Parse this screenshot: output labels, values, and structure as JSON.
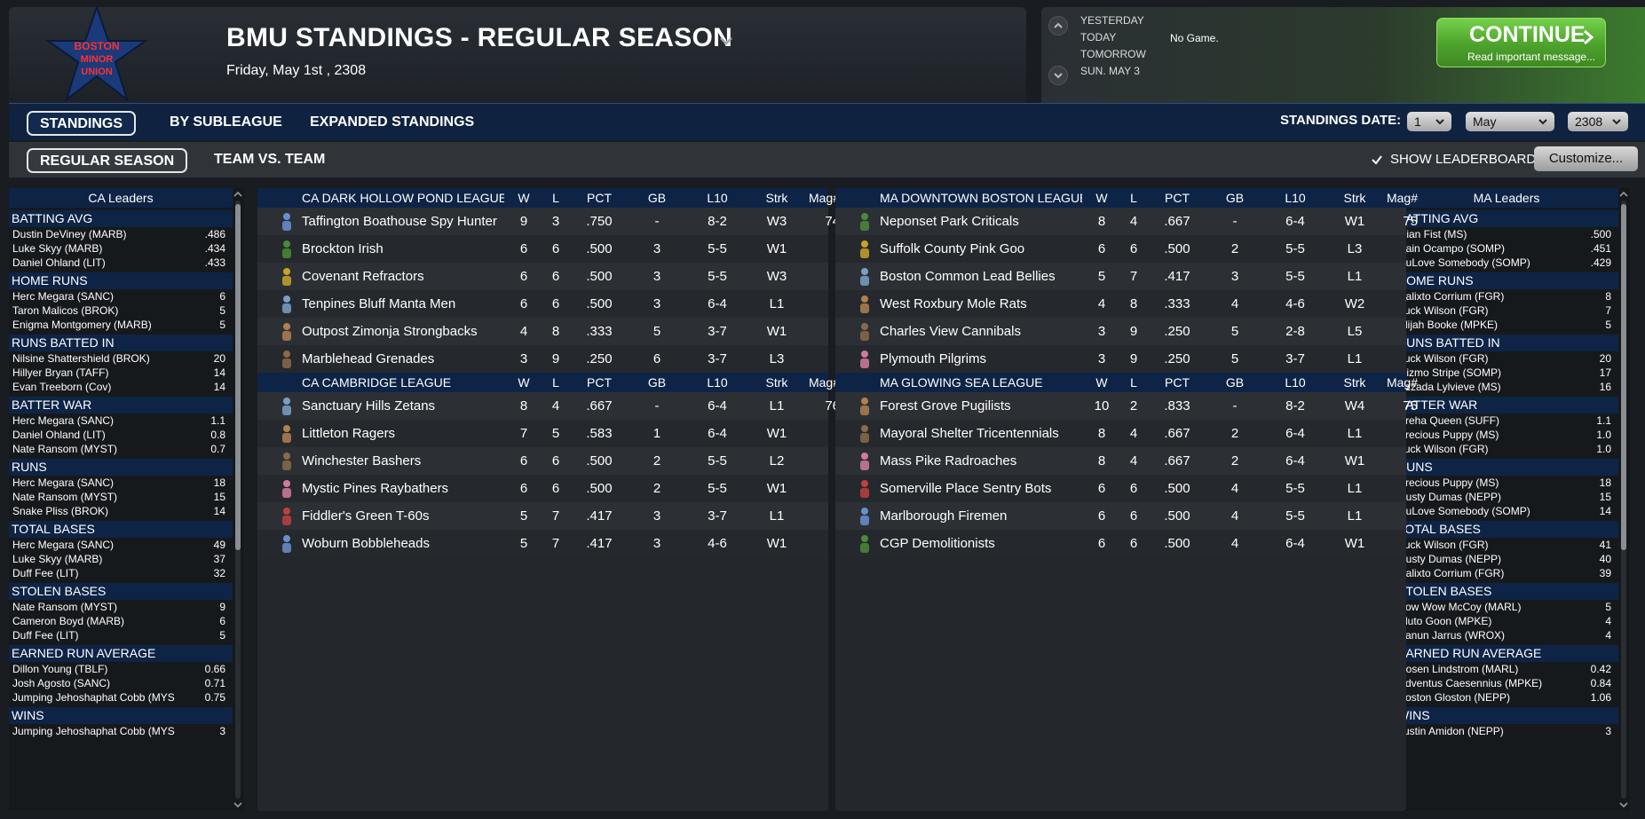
{
  "header": {
    "logo_text": [
      "BOSTON",
      "MINOR",
      "UNION"
    ],
    "title": "BMU STANDINGS - REGULAR SEASON",
    "date": "Friday, May 1st , 2308"
  },
  "schedule": {
    "labels": [
      "YESTERDAY",
      "TODAY",
      "TOMORROW",
      "SUN. MAY 3"
    ],
    "today_game": "No Game."
  },
  "continue": {
    "label": "CONTINUE",
    "sub": "Read important message..."
  },
  "tabs": {
    "top": [
      "STANDINGS",
      "BY SUBLEAGUE",
      "EXPANDED STANDINGS"
    ],
    "sub": [
      "REGULAR SEASON",
      "TEAM VS. TEAM"
    ]
  },
  "standings_date": {
    "label": "STANDINGS DATE:",
    "day": "1",
    "month": "May",
    "year": "2308"
  },
  "show_leaderboards": "SHOW LEADERBOARDS",
  "customize": "Customize...",
  "columns": {
    "w": "W",
    "l": "L",
    "pct": "PCT",
    "gb": "GB",
    "l10": "L10",
    "strk": "Strk",
    "mag": "Mag#"
  },
  "leaders": [
    {
      "title": "CA Leaders",
      "categories": [
        {
          "name": "BATTING AVG",
          "rows": [
            [
              "Dustin DeViney (MARB)",
              ".486"
            ],
            [
              "Luke Skyy (MARB)",
              ".434"
            ],
            [
              "Daniel Ohland (LIT)",
              ".433"
            ]
          ]
        },
        {
          "name": "HOME RUNS",
          "rows": [
            [
              "Herc Megara (SANC)",
              "6"
            ],
            [
              "Taron Malicos (BROK)",
              "5"
            ],
            [
              "Enigma Montgomery (MARB)",
              "5"
            ]
          ]
        },
        {
          "name": "RUNS BATTED IN",
          "rows": [
            [
              "Nilsine Shattershield (BROK)",
              "20"
            ],
            [
              "Hillyer Bryan (TAFF)",
              "14"
            ],
            [
              "Evan Treeborn (Cov)",
              "14"
            ]
          ]
        },
        {
          "name": "BATTER WAR",
          "rows": [
            [
              "Herc Megara (SANC)",
              "1.1"
            ],
            [
              "Daniel Ohland (LIT)",
              "0.8"
            ],
            [
              "Nate Ransom (MYST)",
              "0.7"
            ]
          ]
        },
        {
          "name": "RUNS",
          "rows": [
            [
              "Herc Megara (SANC)",
              "18"
            ],
            [
              "Nate Ransom (MYST)",
              "15"
            ],
            [
              "Snake Pliss (BROK)",
              "14"
            ]
          ]
        },
        {
          "name": "TOTAL BASES",
          "rows": [
            [
              "Herc Megara (SANC)",
              "49"
            ],
            [
              "Luke Skyy (MARB)",
              "37"
            ],
            [
              "Duff Fee (LIT)",
              "32"
            ]
          ]
        },
        {
          "name": "STOLEN BASES",
          "rows": [
            [
              "Nate Ransom (MYST)",
              "9"
            ],
            [
              "Cameron Boyd (MARB)",
              "6"
            ],
            [
              "Duff Fee (LIT)",
              "5"
            ]
          ]
        },
        {
          "name": "EARNED RUN AVERAGE",
          "rows": [
            [
              "Dillon Young (TBLF)",
              "0.66"
            ],
            [
              "Josh Agosto (SANC)",
              "0.71"
            ],
            [
              "Jumping Jehoshaphat Cobb (MYS",
              "0.75"
            ]
          ]
        },
        {
          "name": "WINS",
          "rows": [
            [
              "Jumping Jehoshaphat Cobb (MYS",
              "3"
            ]
          ]
        }
      ]
    },
    {
      "title": "MA Leaders",
      "categories": [
        {
          "name": "BATTING AVG",
          "rows": [
            [
              "Gian Fist (MS)",
              ".500"
            ],
            [
              "Rain Ocampo (SOMP)",
              ".451"
            ],
            [
              "DuLove Somebody (SOMP)",
              ".429"
            ]
          ]
        },
        {
          "name": "HOME RUNS",
          "rows": [
            [
              "Calixto Corrium (FGR)",
              "8"
            ],
            [
              "Tuck Wilson (FGR)",
              "7"
            ],
            [
              "Elijah Booke (MPKE)",
              "5"
            ]
          ]
        },
        {
          "name": "RUNS BATTED IN",
          "rows": [
            [
              "Tuck Wilson (FGR)",
              "20"
            ],
            [
              "Gizmo Stripe (SOMP)",
              "17"
            ],
            [
              "Azzada Lylvieve (MS)",
              "16"
            ]
          ]
        },
        {
          "name": "BATTER WAR",
          "rows": [
            [
              "Breha Queen (SUFF)",
              "1.1"
            ],
            [
              "Precious Puppy (MS)",
              "1.0"
            ],
            [
              "Tuck Wilson (FGR)",
              "1.0"
            ]
          ]
        },
        {
          "name": "RUNS",
          "rows": [
            [
              "Precious Puppy (MS)",
              "18"
            ],
            [
              "Dusty Dumas (NEPP)",
              "15"
            ],
            [
              "DuLove Somebody (SOMP)",
              "14"
            ]
          ]
        },
        {
          "name": "TOTAL BASES",
          "rows": [
            [
              "Tuck Wilson (FGR)",
              "41"
            ],
            [
              "Dusty Dumas (NEPP)",
              "40"
            ],
            [
              "Calixto Corrium (FGR)",
              "39"
            ]
          ]
        },
        {
          "name": "STOLEN BASES",
          "rows": [
            [
              "Bow Wow McCoy (MARL)",
              "5"
            ],
            [
              "Bluto Goon (MPKE)",
              "4"
            ],
            [
              "Kanun Jarrus (WROX)",
              "4"
            ]
          ]
        },
        {
          "name": "EARNED RUN AVERAGE",
          "rows": [
            [
              "Cosen Lindstrom (MARL)",
              "0.42"
            ],
            [
              "Adventus Caesennius (MPKE)",
              "0.84"
            ],
            [
              "Boston Gloston (NEPP)",
              "1.06"
            ]
          ]
        },
        {
          "name": "WINS",
          "rows": [
            [
              "Justin Amidon (NEPP)",
              "3"
            ]
          ]
        }
      ]
    }
  ],
  "divisions": [
    [
      {
        "name": "CA DARK HOLLOW POND LEAGUE",
        "teams": [
          {
            "team": "Taffington Boathouse Spy Hunters",
            "w": "9",
            "l": "3",
            "pct": ".750",
            "gb": "-",
            "l10": "8-2",
            "strk": "W3",
            "mag": "74"
          },
          {
            "team": "Brockton Irish",
            "w": "6",
            "l": "6",
            "pct": ".500",
            "gb": "3",
            "l10": "5-5",
            "strk": "W1",
            "mag": ""
          },
          {
            "team": "Covenant Refractors",
            "w": "6",
            "l": "6",
            "pct": ".500",
            "gb": "3",
            "l10": "5-5",
            "strk": "W3",
            "mag": ""
          },
          {
            "team": "Tenpines Bluff Manta Men",
            "w": "6",
            "l": "6",
            "pct": ".500",
            "gb": "3",
            "l10": "6-4",
            "strk": "L1",
            "mag": ""
          },
          {
            "team": "Outpost Zimonja Strongbacks",
            "w": "4",
            "l": "8",
            "pct": ".333",
            "gb": "5",
            "l10": "3-7",
            "strk": "W1",
            "mag": ""
          },
          {
            "team": "Marblehead Grenades",
            "w": "3",
            "l": "9",
            "pct": ".250",
            "gb": "6",
            "l10": "3-7",
            "strk": "L3",
            "mag": ""
          }
        ]
      },
      {
        "name": "CA CAMBRIDGE LEAGUE",
        "teams": [
          {
            "team": "Sanctuary Hills Zetans",
            "w": "8",
            "l": "4",
            "pct": ".667",
            "gb": "-",
            "l10": "6-4",
            "strk": "L1",
            "mag": "76"
          },
          {
            "team": "Littleton Ragers",
            "w": "7",
            "l": "5",
            "pct": ".583",
            "gb": "1",
            "l10": "6-4",
            "strk": "W1",
            "mag": ""
          },
          {
            "team": "Winchester Bashers",
            "w": "6",
            "l": "6",
            "pct": ".500",
            "gb": "2",
            "l10": "5-5",
            "strk": "L2",
            "mag": ""
          },
          {
            "team": "Mystic Pines Raybathers",
            "w": "6",
            "l": "6",
            "pct": ".500",
            "gb": "2",
            "l10": "5-5",
            "strk": "W1",
            "mag": ""
          },
          {
            "team": "Fiddler's Green T-60s",
            "w": "5",
            "l": "7",
            "pct": ".417",
            "gb": "3",
            "l10": "3-7",
            "strk": "L1",
            "mag": ""
          },
          {
            "team": "Woburn Bobbleheads",
            "w": "5",
            "l": "7",
            "pct": ".417",
            "gb": "3",
            "l10": "4-6",
            "strk": "W1",
            "mag": ""
          }
        ]
      }
    ],
    [
      {
        "name": "MA DOWNTOWN BOSTON LEAGUE",
        "teams": [
          {
            "team": "Neponset Park Criticals",
            "w": "8",
            "l": "4",
            "pct": ".667",
            "gb": "-",
            "l10": "6-4",
            "strk": "W1",
            "mag": "75"
          },
          {
            "team": "Suffolk County Pink Goo",
            "w": "6",
            "l": "6",
            "pct": ".500",
            "gb": "2",
            "l10": "5-5",
            "strk": "L3",
            "mag": ""
          },
          {
            "team": "Boston Common Lead Bellies",
            "w": "5",
            "l": "7",
            "pct": ".417",
            "gb": "3",
            "l10": "5-5",
            "strk": "L1",
            "mag": ""
          },
          {
            "team": "West Roxbury Mole Rats",
            "w": "4",
            "l": "8",
            "pct": ".333",
            "gb": "4",
            "l10": "4-6",
            "strk": "W2",
            "mag": ""
          },
          {
            "team": "Charles View Cannibals",
            "w": "3",
            "l": "9",
            "pct": ".250",
            "gb": "5",
            "l10": "2-8",
            "strk": "L5",
            "mag": ""
          },
          {
            "team": "Plymouth Pilgrims",
            "w": "3",
            "l": "9",
            "pct": ".250",
            "gb": "5",
            "l10": "3-7",
            "strk": "L1",
            "mag": ""
          }
        ]
      },
      {
        "name": "MA GLOWING SEA LEAGUE",
        "teams": [
          {
            "team": "Forest Grove Pugilists",
            "w": "10",
            "l": "2",
            "pct": ".833",
            "gb": "-",
            "l10": "8-2",
            "strk": "W4",
            "mag": "75"
          },
          {
            "team": "Mayoral Shelter Tricentennials",
            "w": "8",
            "l": "4",
            "pct": ".667",
            "gb": "2",
            "l10": "6-4",
            "strk": "L1",
            "mag": ""
          },
          {
            "team": "Mass Pike Radroaches",
            "w": "8",
            "l": "4",
            "pct": ".667",
            "gb": "2",
            "l10": "6-4",
            "strk": "W1",
            "mag": ""
          },
          {
            "team": "Somerville Place Sentry Bots",
            "w": "6",
            "l": "6",
            "pct": ".500",
            "gb": "4",
            "l10": "5-5",
            "strk": "L1",
            "mag": ""
          },
          {
            "team": "Marlborough Firemen",
            "w": "6",
            "l": "6",
            "pct": ".500",
            "gb": "4",
            "l10": "5-5",
            "strk": "L1",
            "mag": ""
          },
          {
            "team": "CGP Demolitionists",
            "w": "6",
            "l": "6",
            "pct": ".500",
            "gb": "4",
            "l10": "6-4",
            "strk": "W1",
            "mag": ""
          }
        ]
      }
    ]
  ],
  "colors": {
    "header_blue": "#0e2446",
    "continue_green": "#4da22c",
    "panel": "#24282c"
  }
}
